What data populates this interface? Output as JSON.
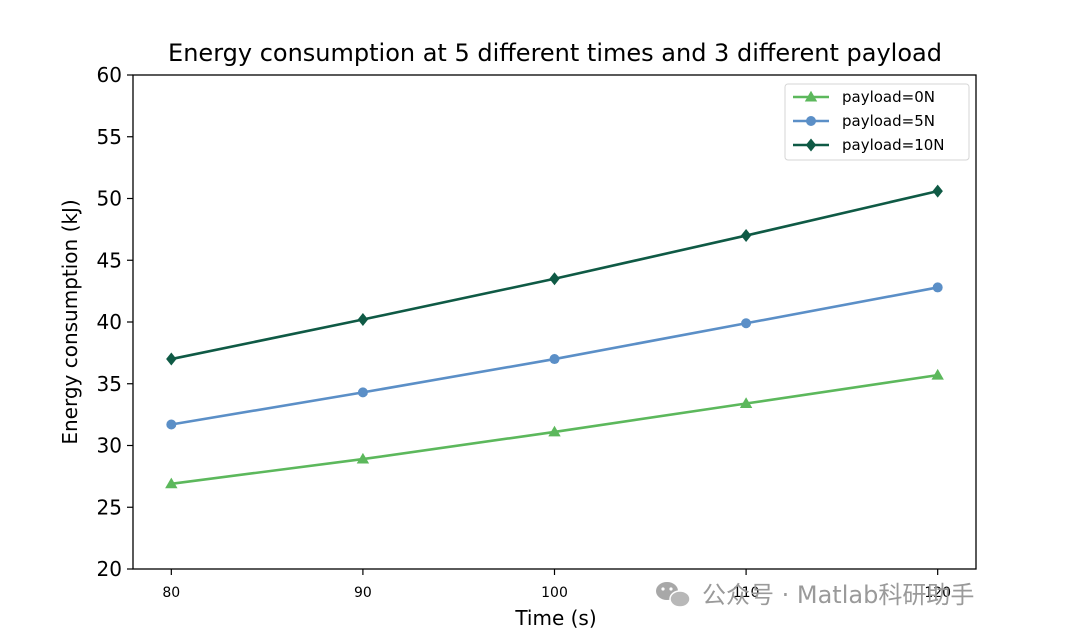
{
  "chart_data": {
    "type": "line",
    "title": "Energy consumption at 5 different times and 3 different payload",
    "xlabel": "Time (s)",
    "ylabel": "Energy consumption (kJ)",
    "x": [
      80,
      90,
      100,
      110,
      120
    ],
    "xticks": [
      "80",
      "90",
      "100",
      "110",
      "120"
    ],
    "yticks": [
      "20",
      "25",
      "30",
      "35",
      "40",
      "45",
      "50",
      "55",
      "60"
    ],
    "ylim": [
      20,
      60
    ],
    "xlim": [
      78,
      122
    ],
    "legend_position": "top-right",
    "series": [
      {
        "name": "payload=0N",
        "marker": "triangle",
        "color": "#5cb85c",
        "values": [
          26.9,
          28.9,
          31.1,
          33.4,
          35.7
        ]
      },
      {
        "name": "payload=5N",
        "marker": "circle",
        "color": "#5b8fc7",
        "values": [
          31.7,
          34.3,
          37.0,
          39.9,
          42.8
        ]
      },
      {
        "name": "payload=10N",
        "marker": "diamond",
        "color": "#0f5a45",
        "values": [
          37.0,
          40.2,
          43.5,
          47.0,
          50.6
        ]
      }
    ]
  },
  "watermark": {
    "icon": "wechat-icon",
    "text": "公众号 · Matlab科研助手"
  }
}
